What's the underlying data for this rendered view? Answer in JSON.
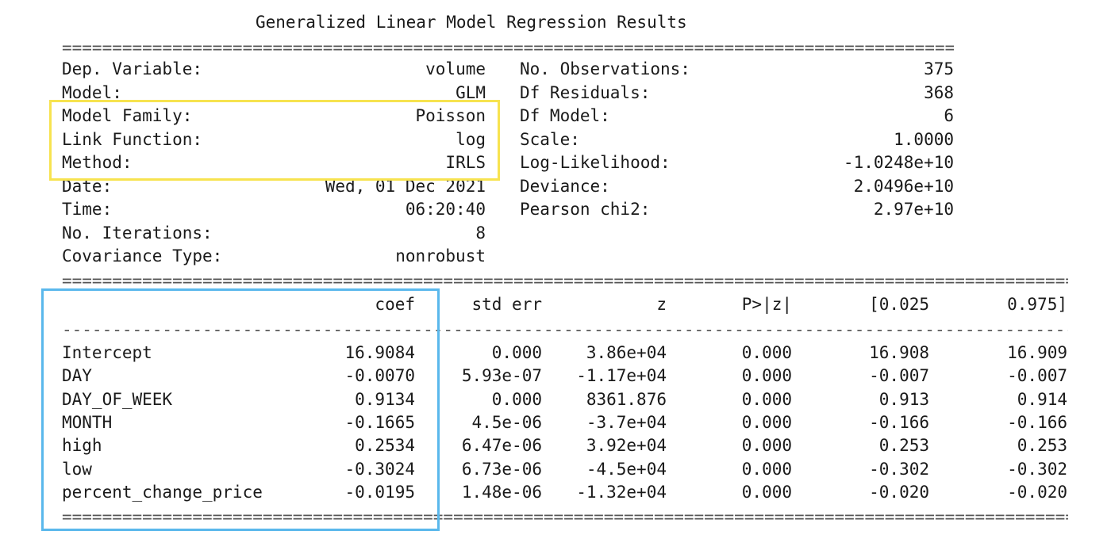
{
  "title": "Generalized Linear Model Regression Results",
  "rule_double": "=====================================================================================================================================",
  "rule_single": "-------------------------------------------------------------------------------------------------------------------------------------",
  "highlight_colors": {
    "model_info": "#f7e34f",
    "coef_column": "#5ab8ec"
  },
  "summary": {
    "left": [
      {
        "label": "Dep. Variable:",
        "value": "volume"
      },
      {
        "label": "Model:",
        "value": "GLM"
      },
      {
        "label": "Model Family:",
        "value": "Poisson"
      },
      {
        "label": "Link Function:",
        "value": "log"
      },
      {
        "label": "Method:",
        "value": "IRLS"
      },
      {
        "label": "Date:",
        "value": "Wed, 01 Dec 2021"
      },
      {
        "label": "Time:",
        "value": "06:20:40"
      },
      {
        "label": "No. Iterations:",
        "value": "8"
      },
      {
        "label": "Covariance Type:",
        "value": "nonrobust"
      }
    ],
    "right": [
      {
        "label": "No. Observations:",
        "value": "375"
      },
      {
        "label": "Df Residuals:",
        "value": "368"
      },
      {
        "label": "Df Model:",
        "value": "6"
      },
      {
        "label": "Scale:",
        "value": "1.0000"
      },
      {
        "label": "Log-Likelihood:",
        "value": "-1.0248e+10"
      },
      {
        "label": "Deviance:",
        "value": "2.0496e+10"
      },
      {
        "label": "Pearson chi2:",
        "value": "2.97e+10"
      }
    ]
  },
  "coef_table": {
    "headers": [
      "coef",
      "std err",
      "z",
      "P>|z|",
      "[0.025",
      "0.975]"
    ],
    "rows": [
      {
        "name": "Intercept",
        "cells": [
          "16.9084",
          "0.000",
          "3.86e+04",
          "0.000",
          "16.908",
          "16.909"
        ]
      },
      {
        "name": "DAY",
        "cells": [
          "-0.0070",
          "5.93e-07",
          "-1.17e+04",
          "0.000",
          "-0.007",
          "-0.007"
        ]
      },
      {
        "name": "DAY_OF_WEEK",
        "cells": [
          "0.9134",
          "0.000",
          "8361.876",
          "0.000",
          "0.913",
          "0.914"
        ]
      },
      {
        "name": "MONTH",
        "cells": [
          "-0.1665",
          "4.5e-06",
          "-3.7e+04",
          "0.000",
          "-0.166",
          "-0.166"
        ]
      },
      {
        "name": "high",
        "cells": [
          "0.2534",
          "6.47e-06",
          "3.92e+04",
          "0.000",
          "0.253",
          "0.253"
        ]
      },
      {
        "name": "low",
        "cells": [
          "-0.3024",
          "6.73e-06",
          "-4.5e+04",
          "0.000",
          "-0.302",
          "-0.302"
        ]
      },
      {
        "name": "percent_change_price",
        "cells": [
          "-0.0195",
          "1.48e-06",
          "-1.32e+04",
          "0.000",
          "-0.020",
          "-0.020"
        ]
      }
    ]
  }
}
